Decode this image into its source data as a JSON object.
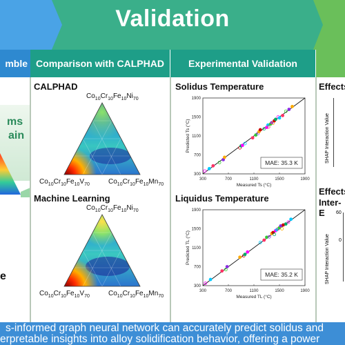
{
  "banner": {
    "title": "Validation"
  },
  "columns": {
    "left_partial_header": "mble",
    "calphad_header": "Comparison with CALPHAD",
    "experimental_header": "Experimental Validation"
  },
  "left_panel": {
    "fragment_1": "ms",
    "fragment_2": "ain",
    "fragment_3": "e"
  },
  "calphad_panel": {
    "calphad_title": "CALPHAD",
    "ml_title": "Machine Learning",
    "vertex_top": "Co10Cr10Fe10Ni70",
    "vertex_left": "Co10Cr10Fe10V70",
    "vertex_right": "Co10Cr10Fe10Mn70"
  },
  "experimental_panel": {
    "solidus_title": "Solidus Temperature",
    "liquidus_title": "Liquidus Temperature",
    "solidus_mae": "MAE: 35.3 K",
    "liquidus_mae": "MAE: 35.2 K",
    "solidus_ylabel": "Predicted Ts (°C)",
    "liquidus_ylabel": "Predicted TL (°C)",
    "solidus_xlabel": "Measured Ts (°C)",
    "liquidus_xlabel": "Measured TL (°C)",
    "ticks": [
      "300",
      "700",
      "1100",
      "1500",
      "1900"
    ]
  },
  "right_panel": {
    "effects_title_1": "Effects",
    "effects_title_2a": "Effects",
    "effects_title_2b": "Inter-E",
    "shap_label": "SHAP Interaction Value",
    "tick_60": "60",
    "tick_0": "0"
  },
  "footer": {
    "line1": "s-informed graph neural network can accurately predict solidus and",
    "line2": "erpretable insights into alloy solidification behavior, offering a power"
  },
  "colors": {
    "banner_green": "#3aaf8a",
    "header_teal": "#1e9e88",
    "header_blue": "#2e89d0",
    "footer_blue": "#3d8ed6"
  },
  "chart_data": [
    {
      "type": "scatter",
      "title": "Solidus Temperature",
      "xlabel": "Measured Ts (°C)",
      "ylabel": "Predicted Ts (°C)",
      "xlim": [
        300,
        1900
      ],
      "ylim": [
        300,
        1900
      ],
      "annotation": "MAE: 35.3 K",
      "points": [
        [
          330,
          360
        ],
        [
          400,
          410
        ],
        [
          460,
          470
        ],
        [
          560,
          540
        ],
        [
          620,
          600
        ],
        [
          640,
          650
        ],
        [
          880,
          850
        ],
        [
          900,
          890
        ],
        [
          920,
          900
        ],
        [
          960,
          940
        ],
        [
          1080,
          1060
        ],
        [
          1130,
          1120
        ],
        [
          1160,
          1150
        ],
        [
          1180,
          1190
        ],
        [
          1200,
          1230
        ],
        [
          1260,
          1250
        ],
        [
          1300,
          1280
        ],
        [
          1320,
          1330
        ],
        [
          1330,
          1290
        ],
        [
          1360,
          1350
        ],
        [
          1380,
          1380
        ],
        [
          1400,
          1370
        ],
        [
          1420,
          1420
        ],
        [
          1440,
          1450
        ],
        [
          1480,
          1500
        ],
        [
          1500,
          1480
        ],
        [
          1550,
          1530
        ],
        [
          1600,
          1620
        ],
        [
          1650,
          1660
        ],
        [
          1700,
          1720
        ]
      ]
    },
    {
      "type": "scatter",
      "title": "Liquidus Temperature",
      "xlabel": "Measured TL (°C)",
      "ylabel": "Predicted TL (°C)",
      "xlim": [
        300,
        1900
      ],
      "ylim": [
        300,
        1900
      ],
      "annotation": "MAE: 35.2 K",
      "points": [
        [
          340,
          350
        ],
        [
          420,
          430
        ],
        [
          600,
          610
        ],
        [
          660,
          640
        ],
        [
          680,
          700
        ],
        [
          880,
          900
        ],
        [
          940,
          930
        ],
        [
          960,
          960
        ],
        [
          1000,
          1010
        ],
        [
          1200,
          1210
        ],
        [
          1260,
          1260
        ],
        [
          1300,
          1320
        ],
        [
          1340,
          1330
        ],
        [
          1380,
          1400
        ],
        [
          1400,
          1420
        ],
        [
          1420,
          1380
        ],
        [
          1440,
          1460
        ],
        [
          1460,
          1480
        ],
        [
          1480,
          1500
        ],
        [
          1500,
          1520
        ],
        [
          1520,
          1560
        ],
        [
          1540,
          1500
        ],
        [
          1560,
          1580
        ],
        [
          1600,
          1600
        ],
        [
          1640,
          1640
        ],
        [
          1680,
          1700
        ]
      ]
    }
  ]
}
